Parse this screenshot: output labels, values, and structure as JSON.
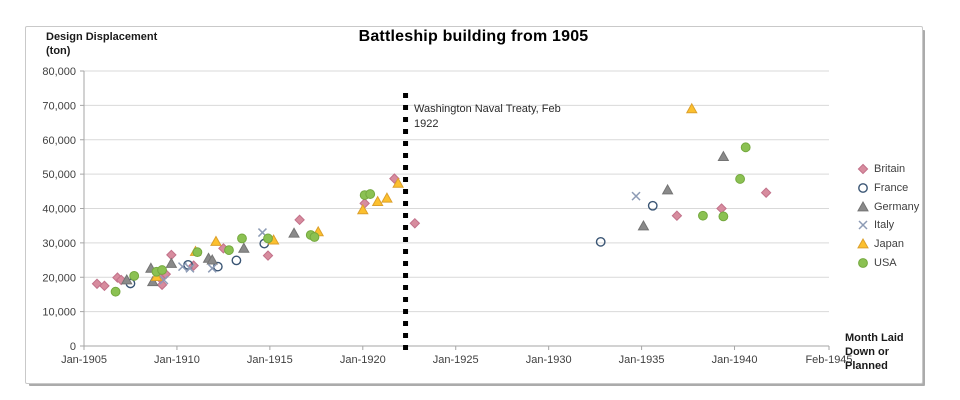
{
  "chart_data": {
    "type": "scatter",
    "title": "Battleship building from 1905",
    "x_axis": {
      "label": "Month Laid Down or Planned",
      "min_year": 1905.0,
      "max_year": 1945.083,
      "ticks": [
        {
          "label": "Jan-1905",
          "year": 1905.0
        },
        {
          "label": "Jan-1910",
          "year": 1910.0
        },
        {
          "label": "Jan-1915",
          "year": 1915.0
        },
        {
          "label": "Jan-1920",
          "year": 1920.0
        },
        {
          "label": "Jan-1925",
          "year": 1925.0
        },
        {
          "label": "Jan-1930",
          "year": 1930.0
        },
        {
          "label": "Jan-1935",
          "year": 1935.0
        },
        {
          "label": "Jan-1940",
          "year": 1940.0
        },
        {
          "label": "Feb-1945",
          "year": 1945.083
        }
      ]
    },
    "y_axis": {
      "label": "Design Displacement (ton)",
      "min": 0,
      "max": 80000,
      "step": 10000,
      "ticks": [
        {
          "label": "0",
          "value": 0
        },
        {
          "label": "10,000",
          "value": 10000
        },
        {
          "label": "20,000",
          "value": 20000
        },
        {
          "label": "30,000",
          "value": 30000
        },
        {
          "label": "40,000",
          "value": 40000
        },
        {
          "label": "50,000",
          "value": 50000
        },
        {
          "label": "60,000",
          "value": 60000
        },
        {
          "label": "70,000",
          "value": 70000
        },
        {
          "label": "80,000",
          "value": 80000
        }
      ]
    },
    "annotation": {
      "text": "Washington Naval Treaty, Feb 1922",
      "line_year": 1922.3
    },
    "legend_position": "right",
    "grid": "horizontal",
    "series": [
      {
        "name": "Britain",
        "marker": "diamond",
        "fill": "#d78c9e",
        "edge": "#c2718a",
        "points": [
          [
            1905.7,
            18100
          ],
          [
            1906.1,
            17500
          ],
          [
            1906.8,
            19900
          ],
          [
            1907.0,
            19200
          ],
          [
            1909.1,
            19700
          ],
          [
            1909.2,
            17800
          ],
          [
            1909.4,
            20900
          ],
          [
            1909.7,
            26500
          ],
          [
            1910.9,
            23400
          ],
          [
            1912.5,
            28400
          ],
          [
            1914.9,
            26300
          ],
          [
            1916.6,
            36700
          ],
          [
            1920.1,
            41500
          ],
          [
            1921.7,
            48700
          ],
          [
            1922.8,
            35700
          ],
          [
            1936.9,
            37900
          ],
          [
            1939.3,
            40000
          ],
          [
            1941.7,
            44600
          ]
        ]
      },
      {
        "name": "France",
        "marker": "open-circle",
        "fill": "#ffffff",
        "edge": "#3a5574",
        "points": [
          [
            1907.5,
            18200
          ],
          [
            1910.6,
            23600
          ],
          [
            1912.2,
            23100
          ],
          [
            1913.2,
            24900
          ],
          [
            1914.7,
            29800
          ],
          [
            1932.8,
            30300
          ],
          [
            1935.6,
            40800
          ]
        ]
      },
      {
        "name": "Germany",
        "marker": "triangle",
        "fill": "#8a8a8a",
        "edge": "#747474",
        "points": [
          [
            1907.3,
            19200
          ],
          [
            1908.6,
            22600
          ],
          [
            1908.7,
            18700
          ],
          [
            1909.7,
            24000
          ],
          [
            1911.7,
            25500
          ],
          [
            1911.9,
            25000
          ],
          [
            1913.6,
            28400
          ],
          [
            1916.3,
            32800
          ],
          [
            1935.1,
            34900
          ],
          [
            1936.4,
            45400
          ],
          [
            1939.4,
            55100
          ]
        ]
      },
      {
        "name": "Italy",
        "marker": "x",
        "fill": "none",
        "edge": "#8d9bb5",
        "points": [
          [
            1909.3,
            19200
          ],
          [
            1910.3,
            23100
          ],
          [
            1910.7,
            22600
          ],
          [
            1911.9,
            22600
          ],
          [
            1914.6,
            33000
          ],
          [
            1934.7,
            43600
          ]
        ]
      },
      {
        "name": "Japan",
        "marker": "triangle",
        "fill": "#fcc02e",
        "edge": "#dca02c",
        "points": [
          [
            1908.9,
            20200
          ],
          [
            1911.0,
            27500
          ],
          [
            1912.1,
            30400
          ],
          [
            1915.2,
            30800
          ],
          [
            1917.6,
            33200
          ],
          [
            1920.0,
            39600
          ],
          [
            1920.8,
            42000
          ],
          [
            1921.3,
            43000
          ],
          [
            1921.9,
            47300
          ],
          [
            1937.7,
            69000
          ]
        ]
      },
      {
        "name": "USA",
        "marker": "circle",
        "fill": "#8bc152",
        "edge": "#74a83e",
        "points": [
          [
            1906.7,
            15800
          ],
          [
            1907.7,
            20400
          ],
          [
            1908.9,
            21600
          ],
          [
            1909.2,
            22100
          ],
          [
            1911.1,
            27300
          ],
          [
            1912.8,
            27900
          ],
          [
            1913.5,
            31300
          ],
          [
            1914.9,
            31300
          ],
          [
            1917.2,
            32300
          ],
          [
            1917.4,
            31700
          ],
          [
            1920.1,
            43900
          ],
          [
            1920.4,
            44200
          ],
          [
            1938.3,
            37900
          ],
          [
            1939.4,
            37700
          ],
          [
            1940.3,
            48600
          ],
          [
            1940.6,
            57800
          ]
        ]
      }
    ]
  },
  "colors": {
    "gridline": "#d9d9d9",
    "axis": "#a6a6a6",
    "tick_label": "#3f3f3f",
    "treaty_line": "#000000"
  }
}
